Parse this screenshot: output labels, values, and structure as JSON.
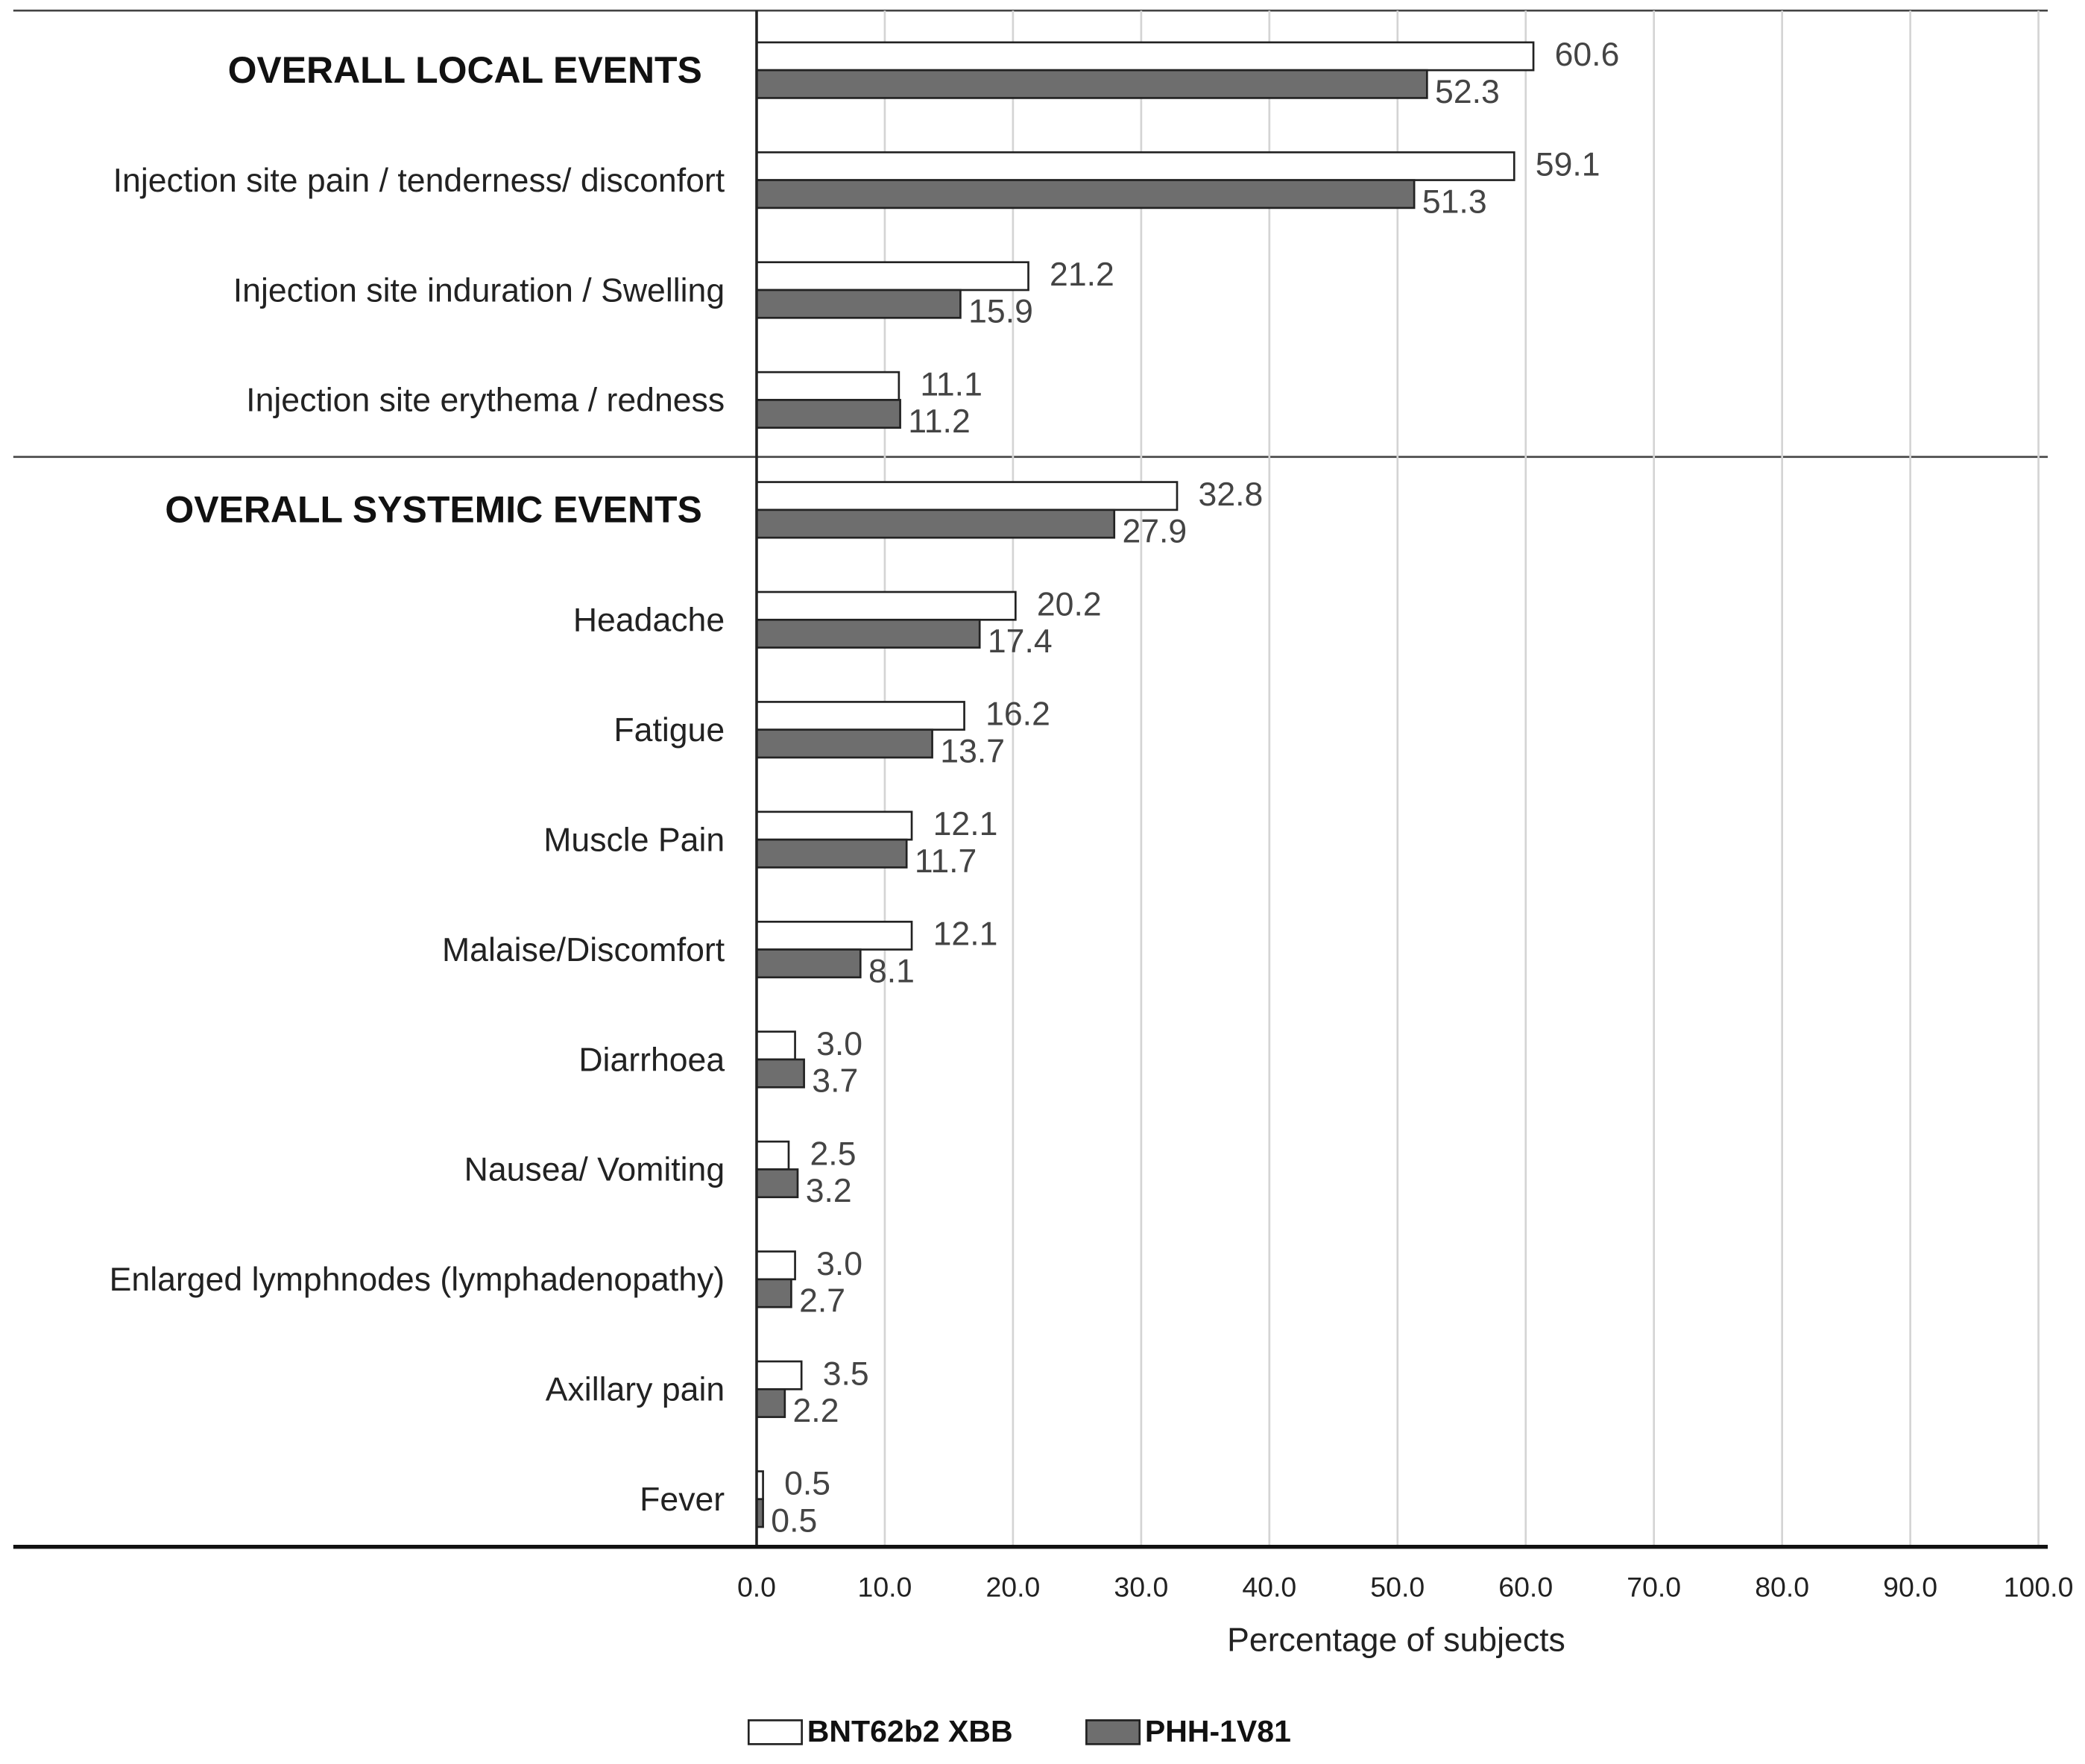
{
  "chart_data": {
    "type": "grouped_hbar",
    "xlabel": "Percentage of subjects",
    "categories": [
      "OVERALL LOCAL EVENTS",
      "Injection site pain / tenderness/ disconfort",
      "Injection site induration / Swelling",
      "Injection site erythema / redness",
      "OVERALL SYSTEMIC EVENTS",
      "Headache",
      "Fatigue",
      "Muscle Pain",
      "Malaise/Discomfort",
      "Diarrhoea",
      "Nausea/ Vomiting",
      "Enlarged lymphnodes (lymphadenopathy)",
      "Axillary pain",
      "Fever"
    ],
    "series": [
      {
        "name": "BNT62b2 XBB",
        "color": "#ffffff",
        "values": [
          60.6,
          59.1,
          21.2,
          11.1,
          32.8,
          20.2,
          16.2,
          12.1,
          12.1,
          3,
          2.5,
          3,
          3.5,
          0.5
        ],
        "value_labels": [
          "60.6",
          "59.1",
          "21.2",
          "11.1",
          "32.8",
          "20.2",
          "16.2",
          "12.1",
          "12.1",
          "3.0",
          "2.5",
          "3.0",
          "3.5",
          "0.5"
        ]
      },
      {
        "name": "PHH-1V81",
        "color": "#6e6e6e",
        "values": [
          52.3,
          51.3,
          15.9,
          11.2,
          27.9,
          17.4,
          13.7,
          11.7,
          8.1,
          3.7,
          3.2,
          2.7,
          2.2,
          0.5
        ],
        "value_labels": [
          "52.3",
          "51.3",
          "15.9",
          "11.2",
          "27.9",
          "17.4",
          "13.7",
          "11.7",
          "8.1",
          "3.7",
          "3.2",
          "2.7",
          "2.2",
          "0.5"
        ]
      }
    ],
    "xlim": [
      0,
      100
    ],
    "xticks": [
      {
        "value": 0,
        "label": "0.0"
      },
      {
        "value": 10,
        "label": "10.0"
      },
      {
        "value": 20,
        "label": "20.0"
      },
      {
        "value": 30,
        "label": "30.0"
      },
      {
        "value": 40,
        "label": "40.0"
      },
      {
        "value": 50,
        "label": "50.0"
      },
      {
        "value": 60,
        "label": "60.0"
      },
      {
        "value": 70,
        "label": "70.0"
      },
      {
        "value": 80,
        "label": "80.0"
      },
      {
        "value": 90,
        "label": "90.0"
      },
      {
        "value": 100,
        "label": "100.0"
      }
    ],
    "grid": true,
    "legend": "bottom"
  }
}
